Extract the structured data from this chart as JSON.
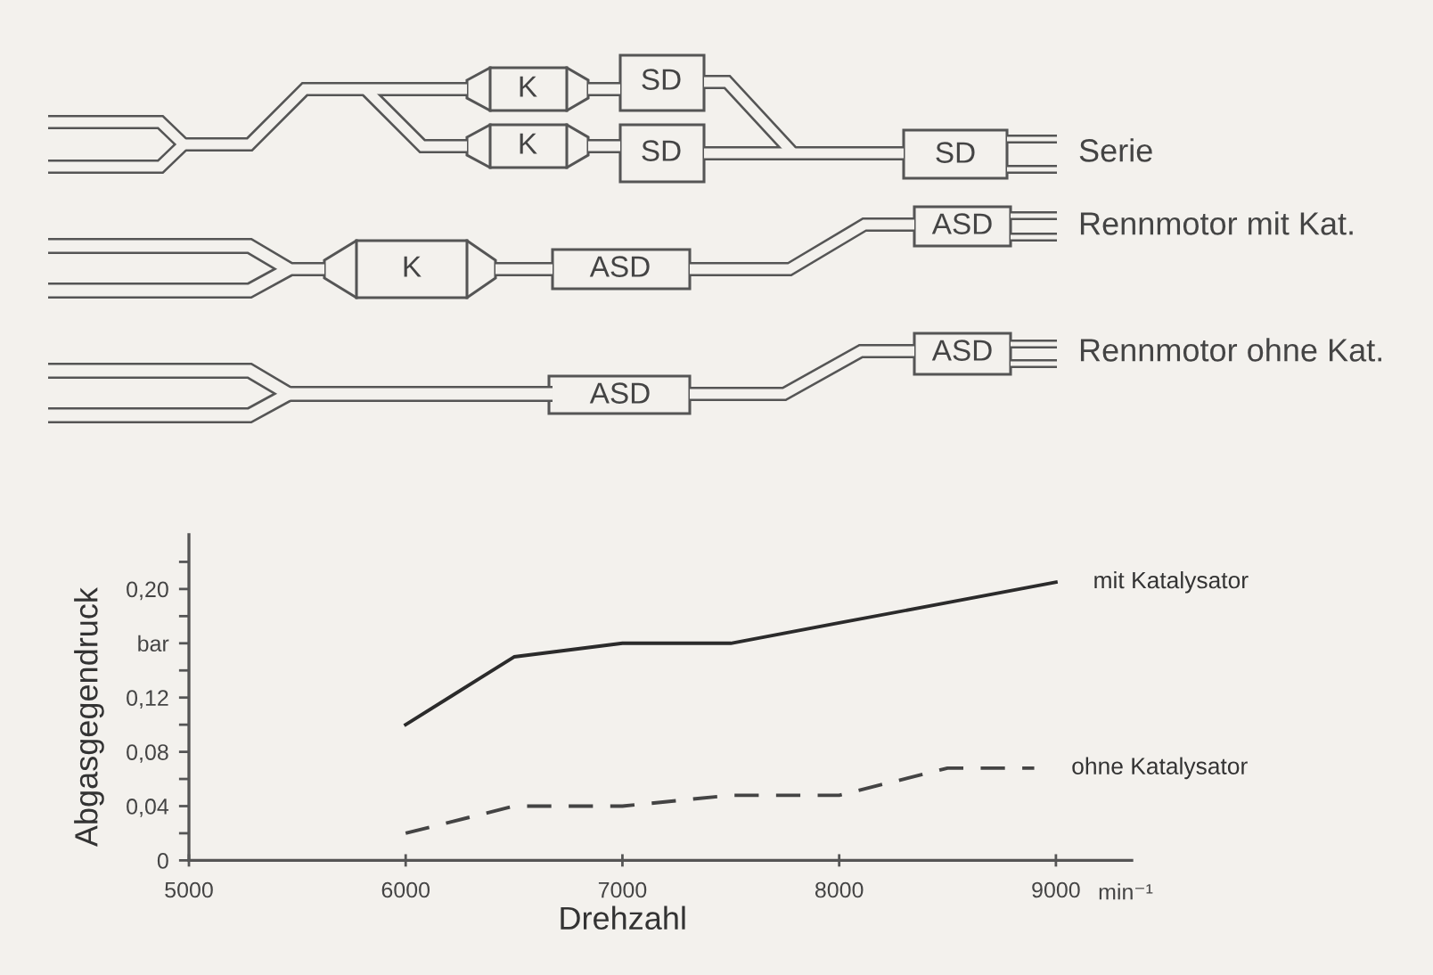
{
  "chart_data": [
    {
      "type": "other",
      "annotations": [
        "K",
        "SD",
        "K",
        "SD",
        "SD",
        "Serie",
        "K",
        "ASD",
        "ASD",
        "Rennmotor mit Kat.",
        "ASD",
        "ASD",
        "Rennmotor ohne Kat."
      ]
    },
    {
      "type": "line",
      "xlabel": "Drehzahl",
      "ylabel": "Abgasgegendruck",
      "annotations": [
        "min⁻¹"
      ],
      "xlim": [
        5000,
        9350
      ],
      "xticks": [
        5000,
        6000,
        7000,
        8000,
        9000
      ],
      "ylim": [
        0,
        0.24
      ],
      "yticks": [
        0,
        {
          "value": 0.02,
          "label": null
        },
        {
          "value": 0.04,
          "label": "0,04"
        },
        {
          "value": 0.06,
          "label": null
        },
        {
          "value": 0.08,
          "label": "0,08"
        },
        {
          "value": 0.1,
          "label": null
        },
        {
          "value": 0.12,
          "label": "0,12"
        },
        {
          "value": 0.14,
          "label": null
        },
        {
          "value": 0.16,
          "label": "bar"
        },
        {
          "value": 0.18,
          "label": null
        },
        {
          "value": 0.2,
          "label": "0,20"
        },
        {
          "value": 0.22,
          "label": null
        }
      ],
      "grid": false,
      "legend": false,
      "series": [
        {
          "name": "mit Katalysator",
          "color": "#2b2b2b",
          "line_style": "solid",
          "x": [
            6000,
            6500,
            7000,
            7500,
            8000,
            8500,
            9000
          ],
          "values": [
            0.1,
            0.15,
            0.16,
            0.16,
            0.175,
            0.19,
            0.205
          ]
        },
        {
          "name": "ohne Katalysator",
          "color": "#444444",
          "line_style": "dashed",
          "x": [
            6000,
            6500,
            7000,
            7500,
            8000,
            8500,
            8900
          ],
          "values": [
            0.02,
            0.04,
            0.04,
            0.048,
            0.048,
            0.068,
            0.068
          ]
        }
      ]
    }
  ]
}
